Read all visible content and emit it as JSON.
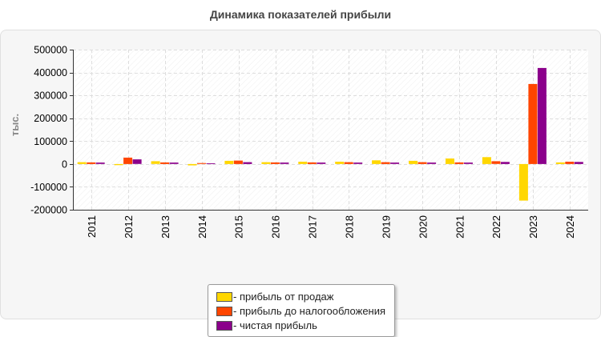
{
  "chart_data": {
    "type": "bar",
    "title": "Динамика показателей прибыли",
    "ylabel": "тыс.",
    "xlabel": "",
    "ylim": [
      -200000,
      500000
    ],
    "yticks": [
      500000,
      400000,
      300000,
      200000,
      100000,
      0,
      -100000,
      -200000
    ],
    "grid": true,
    "legend_position": "bottom",
    "categories": [
      "2011",
      "2012",
      "2013",
      "2014",
      "2015",
      "2016",
      "2017",
      "2018",
      "2019",
      "2020",
      "2021",
      "2022",
      "2023",
      "2024"
    ],
    "series": [
      {
        "name": "- прибыль от продаж",
        "color": "#ffd700",
        "values": [
          8000,
          -5000,
          12000,
          -6000,
          14000,
          8000,
          10000,
          10000,
          16000,
          14000,
          24000,
          30000,
          -160000,
          7000
        ]
      },
      {
        "name": "- прибыль до налогообложения",
        "color": "#ff4500",
        "values": [
          7000,
          28000,
          7000,
          4000,
          15000,
          7000,
          7000,
          8000,
          8000,
          8000,
          7000,
          12000,
          350000,
          10000
        ]
      },
      {
        "name": "- чистая прибыль",
        "color": "#8b008b",
        "values": [
          6000,
          20000,
          6000,
          3000,
          8000,
          6000,
          6000,
          6000,
          6000,
          6000,
          6000,
          9000,
          420000,
          9000
        ]
      }
    ]
  }
}
